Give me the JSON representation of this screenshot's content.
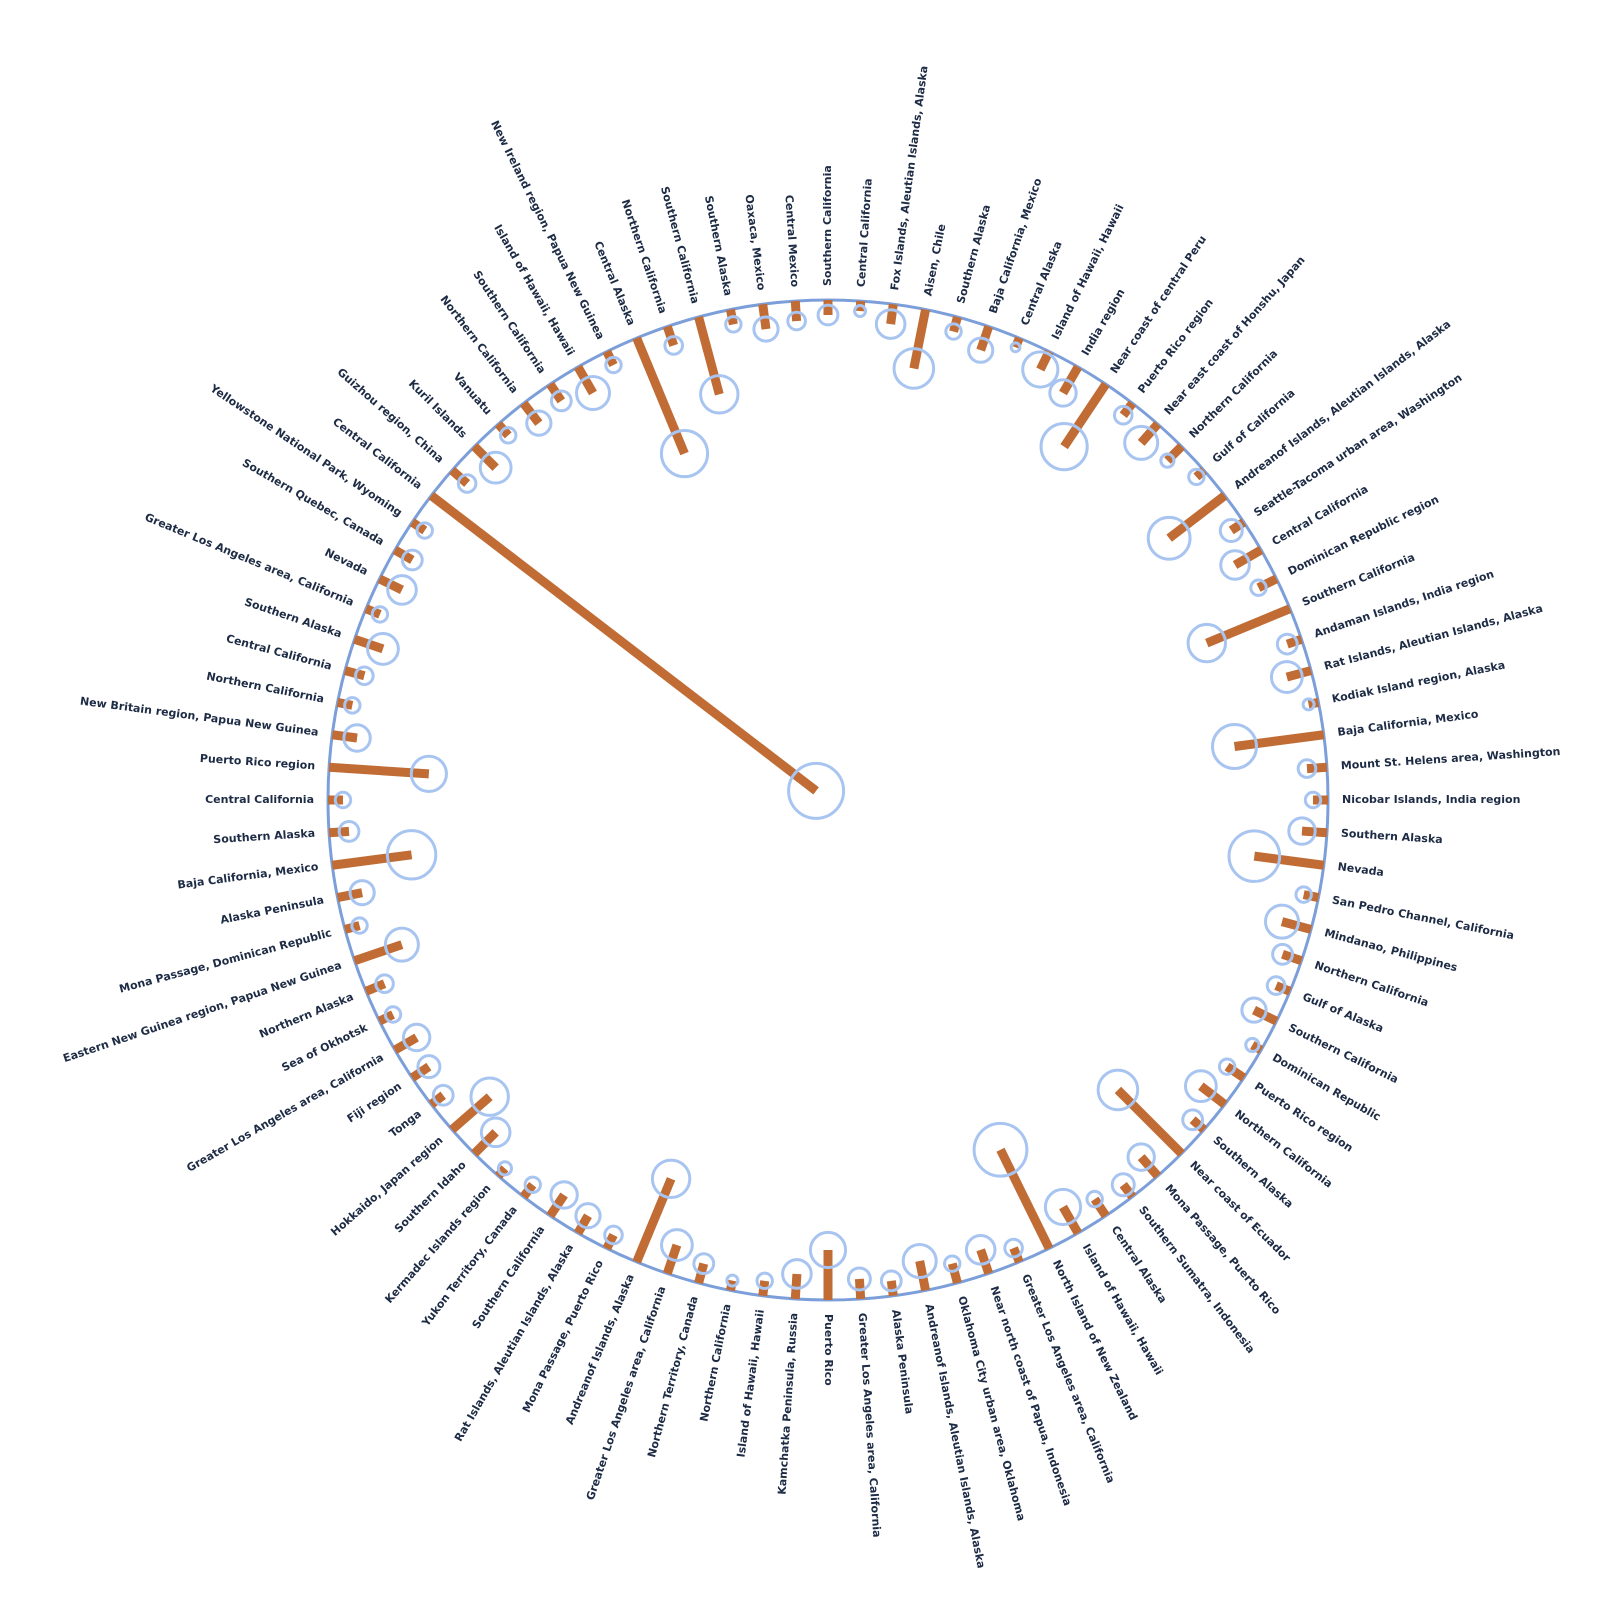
{
  "chart_data": {
    "type": "radial",
    "categories": [
      "Southern California",
      "Central California",
      "Fox Islands, Aleutian Islands, Alaska",
      "Aisen, Chile",
      "Southern Alaska",
      "Baja California, Mexico",
      "Central Alaska",
      "Island of Hawaii, Hawaii",
      "India region",
      "Near coast of central Peru",
      "Puerto Rico region",
      "Near east coast of Honshu, Japan",
      "Northern California",
      "Gulf of California",
      "Andreanof Islands, Aleutian Islands, Alaska",
      "Seattle-Tacoma urban area, Washington",
      "Central California",
      "Dominican Republic region",
      "Southern California",
      "Andaman Islands, India region",
      "Rat Islands, Aleutian Islands, Alaska",
      "Kodiak Island region, Alaska",
      "Baja California, Mexico",
      "Mount St. Helens area, Washington",
      "Nicobar Islands, India region",
      "Southern Alaska",
      "Nevada",
      "San Pedro Channel, California",
      "Mindanao, Philippines",
      "Northern California",
      "Gulf of Alaska",
      "Southern California",
      "Dominican Republic",
      "Puerto Rico region",
      "Northern California",
      "Southern Alaska",
      "Near coast of Ecuador",
      "Mona Passage, Puerto Rico",
      "Southern Sumatra, Indonesia",
      "Central Alaska",
      "Island of Hawaii, Hawaii",
      "North Island of New Zealand",
      "Greater Los Angeles area, California",
      "Near north coast of Papua, Indonesia",
      "Oklahoma City urban area, Oklahoma",
      "Andreanof Islands, Aleutian Islands, Alaska",
      "Alaska Peninsula",
      "Greater Los Angeles area, California",
      "Puerto Rico",
      "Kamchatka Peninsula, Russia",
      "Island of Hawaii, Hawaii",
      "Northern California",
      "Northern Territory, Canada",
      "Greater Los Angeles area, California",
      "Andreanof Islands, Alaska",
      "Mona Passage, Puerto Rico",
      "Rat Islands, Aleutian Islands, Alaska",
      "Southern California",
      "Yukon Territory, Canada",
      "Kermadec Islands region",
      "Southern Idaho",
      "Hokkaido, Japan region",
      "Tonga",
      "Fiji region",
      "Greater Los Angeles area, California",
      "Sea of Okhotsk",
      "Northern Alaska",
      "Eastern New Guinea region, Papua New Guinea",
      "Mona Passage, Dominican Republic",
      "Alaska Peninsula",
      "Baja California, Mexico",
      "Southern Alaska",
      "Central California",
      "Puerto Rico region",
      "New Britain region, Papua New Guinea",
      "Northern California",
      "Central California",
      "Southern Alaska",
      "Greater Los Angeles area, California",
      "Nevada",
      "Southern Quebec, Canada",
      "Yellowstone National Park, Wyoming",
      "Central California",
      "Guizhou region, China",
      "Kuril Islands",
      "Vanuatu",
      "Northern California",
      "Southern California",
      "Island of Hawaii, Hawaii",
      "New Ireland region, Papua New Guinea",
      "Central Alaska",
      "Northern California",
      "Southern California",
      "Southern Alaska",
      "Oaxaca, Mexico",
      "Central Mexico"
    ],
    "values": [
      3,
      2,
      4,
      12,
      3,
      5,
      2,
      4,
      6,
      15,
      3,
      5,
      4,
      2,
      14,
      3,
      6,
      4,
      18,
      3,
      5,
      2,
      18,
      4,
      3,
      5,
      14,
      3,
      6,
      4,
      3,
      5,
      2,
      4,
      6,
      3,
      18,
      5,
      3,
      4,
      6,
      22,
      3,
      5,
      4,
      6,
      3,
      4,
      10,
      5,
      3,
      2,
      4,
      6,
      18,
      3,
      4,
      5,
      3,
      2,
      6,
      10,
      3,
      4,
      5,
      3,
      4,
      10,
      3,
      5,
      16,
      4,
      3,
      20,
      5,
      3,
      4,
      6,
      3,
      5,
      4,
      3,
      97,
      4,
      6,
      3,
      5,
      4,
      6,
      3,
      25,
      4,
      16,
      3,
      5,
      4
    ],
    "magnitudes": [
      5.2,
      4.8,
      5.6,
      6.1,
      5.0,
      5.4,
      4.7,
      5.9,
      5.5,
      6.4,
      5.1,
      5.8,
      4.9,
      5.0,
      6.2,
      5.3,
      5.6,
      5.0,
      6.0,
      5.2,
      5.7,
      4.8,
      6.3,
      5.1,
      5.0,
      5.5,
      6.6,
      5.0,
      5.8,
      5.2,
      5.1,
      5.4,
      4.9,
      5.0,
      5.7,
      5.2,
      6.1,
      5.5,
      5.3,
      5.0,
      5.9,
      6.7,
      5.1,
      5.6,
      5.0,
      5.8,
      5.2,
      5.3,
      5.9,
      5.6,
      5.0,
      4.8,
      5.2,
      5.7,
      6.0,
      5.1,
      5.4,
      5.5,
      5.0,
      4.9,
      5.6,
      6.0,
      5.2,
      5.3,
      5.5,
      5.0,
      5.1,
      5.8,
      5.0,
      5.4,
      6.5,
      5.2,
      5.0,
      5.9,
      5.5,
      5.0,
      5.1,
      5.7,
      5.0,
      5.6,
      5.2,
      5.0,
      6.8,
      5.1,
      5.7,
      5.0,
      5.4,
      5.2,
      5.8,
      5.0,
      6.4,
      5.1,
      6.0,
      5.0,
      5.4,
      5.1
    ],
    "color": "#c06c34",
    "marker_color": "#a8c4f0",
    "ylim": [
      0,
      100
    ]
  }
}
